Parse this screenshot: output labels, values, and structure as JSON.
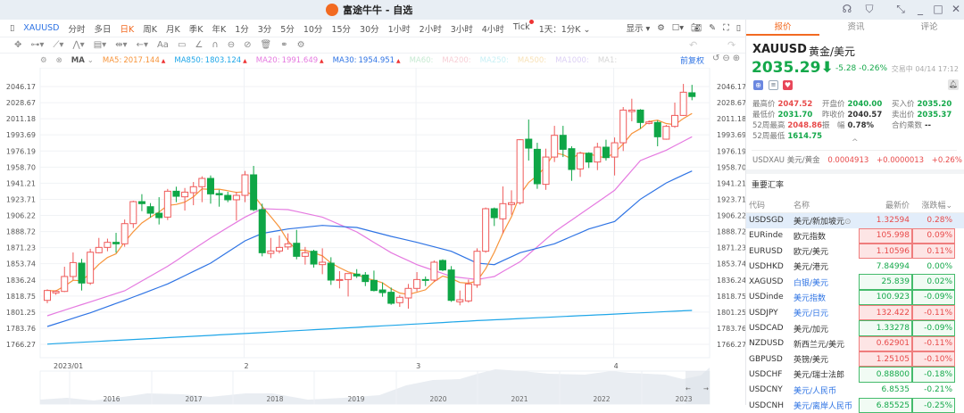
{
  "window": {
    "title": "富途牛牛 - 自选",
    "icons": [
      "headset-icon",
      "shirt-icon",
      "shrink-icon",
      "minimize-icon",
      "maximize-icon",
      "close-icon"
    ]
  },
  "toolbar": {
    "symbol": "XAUUSD",
    "periods": [
      "分时",
      "多日",
      "日K",
      "周K",
      "月K",
      "季K",
      "年K",
      "1分",
      "3分",
      "5分",
      "10分",
      "15分",
      "30分",
      "1小时",
      "2小时",
      "3小时",
      "4小时",
      "Tick",
      "1天：1分K"
    ],
    "active_period": "日K",
    "display_label": "显示"
  },
  "legend": {
    "indicator": "MA",
    "items": [
      {
        "label": "MA5:",
        "value": "2017.144",
        "color": "#f7943a"
      },
      {
        "label": "MA850:",
        "value": "1803.124",
        "color": "#1fa6e8"
      },
      {
        "label": "MA20:",
        "value": "1991.649",
        "color": "#e57ae0"
      },
      {
        "label": "MA30:",
        "value": "1954.951",
        "color": "#2f74e4"
      },
      {
        "label": "MA60:",
        "value": "",
        "color": "#c7ead2"
      },
      {
        "label": "MA200:",
        "value": "",
        "color": "#f7cfd6"
      },
      {
        "label": "MA250:",
        "value": "",
        "color": "#c8f0f5"
      },
      {
        "label": "MA500:",
        "value": "",
        "color": "#f8e2b8"
      },
      {
        "label": "MA1000:",
        "value": "",
        "color": "#dcd0f5"
      },
      {
        "label": "MA1:",
        "value": "",
        "color": "#d6d6d6"
      }
    ],
    "reset_label": "前复权"
  },
  "chart_data": {
    "type": "candlestick",
    "y_ticks": [
      "2046.17",
      "2028.67",
      "2011.18",
      "1993.69",
      "1976.19",
      "1958.70",
      "1941.21",
      "1923.71",
      "1906.22",
      "1888.72",
      "1871.23",
      "1853.74",
      "1836.24",
      "1818.75",
      "1801.25",
      "1783.76",
      "1766.27"
    ],
    "ylim": [
      1766.27,
      2046.17
    ],
    "x_ticks": [
      {
        "label": "2023/01",
        "index": 0
      },
      {
        "label": "2",
        "index": 23
      },
      {
        "label": "3",
        "index": 43
      },
      {
        "label": "4",
        "index": 66
      }
    ],
    "up_color": "#ef5a5a",
    "down_color": "#0fa646",
    "grid": true,
    "candles_ohlc": [
      [
        1814,
        1826,
        1811,
        1824.7
      ],
      [
        1822.1,
        1825,
        1820,
        1823.8
      ],
      [
        1823.7,
        1850.5,
        1823,
        1839.9
      ],
      [
        1839.9,
        1866,
        1836,
        1855
      ],
      [
        1854.4,
        1859,
        1824.7,
        1832.8
      ],
      [
        1832.8,
        1870,
        1830.8,
        1866.3
      ],
      [
        1865.7,
        1881.8,
        1865,
        1871.5
      ],
      [
        1871.5,
        1881,
        1867.3,
        1877
      ],
      [
        1877,
        1887.3,
        1865.7,
        1875.4
      ],
      [
        1875.4,
        1901.8,
        1872.2,
        1897.3
      ],
      [
        1897.3,
        1922.2,
        1892.5,
        1921.2
      ],
      [
        1921.2,
        1929.3,
        1910.9,
        1919
      ],
      [
        1915.7,
        1919.6,
        1903.8,
        1908.6
      ],
      [
        1908.6,
        1926,
        1896.4,
        1903.8
      ],
      [
        1904.4,
        1935,
        1901.2,
        1932.5
      ],
      [
        1932.5,
        1937.4,
        1920.6,
        1927
      ],
      [
        1926.4,
        1936,
        1911.5,
        1931.5
      ],
      [
        1930.9,
        1942.5,
        1917.3,
        1937.4
      ],
      [
        1937.4,
        1948.7,
        1920.6,
        1946.4
      ],
      [
        1946.4,
        1949.6,
        1919,
        1929.6
      ],
      [
        1930,
        1934,
        1915.7,
        1928.6
      ],
      [
        1928,
        1931.9,
        1920.6,
        1923.2
      ],
      [
        1923.2,
        1931.9,
        1900.6,
        1928
      ],
      [
        1928,
        1954.5,
        1920.6,
        1950.3
      ],
      [
        1950.3,
        1960,
        1910.9,
        1912.5
      ],
      [
        1912.5,
        1919,
        1861.8,
        1865.7
      ],
      [
        1865,
        1881.8,
        1859.9,
        1867.6
      ],
      [
        1867.6,
        1884.4,
        1865,
        1871.5
      ],
      [
        1872,
        1886.7,
        1869,
        1875.4
      ],
      [
        1876,
        1890.5,
        1858.6,
        1861.8
      ],
      [
        1861.8,
        1872,
        1852.8,
        1865.7
      ],
      [
        1867.3,
        1868.9,
        1849.6,
        1853.4
      ],
      [
        1852.8,
        1870.5,
        1842.4,
        1855.4
      ],
      [
        1854.4,
        1860.8,
        1830.8,
        1836
      ],
      [
        1835.7,
        1845.7,
        1827,
        1836.6
      ],
      [
        1836.6,
        1843.1,
        1818.2,
        1843.1
      ],
      [
        1842.5,
        1847.9,
        1838.3,
        1840.5
      ],
      [
        1841.5,
        1844.7,
        1829.5,
        1834.4
      ],
      [
        1835.7,
        1846.3,
        1823.7,
        1824.7
      ],
      [
        1825.3,
        1833.4,
        1817.9,
        1822.4
      ],
      [
        1822.8,
        1827.9,
        1809.2,
        1810.8
      ],
      [
        1811.5,
        1819.8,
        1806.9,
        1817.3
      ],
      [
        1816.6,
        1831.8,
        1805,
        1827
      ],
      [
        1827,
        1844.7,
        1823.7,
        1836.6
      ],
      [
        1836.6,
        1839.9,
        1829.5,
        1835.7
      ],
      [
        1836,
        1857.3,
        1834.1,
        1855.4
      ],
      [
        1857.3,
        1858.6,
        1845.7,
        1847
      ],
      [
        1847,
        1851.2,
        1812.4,
        1814
      ],
      [
        1812.4,
        1824.7,
        1808.6,
        1814.7
      ],
      [
        1813.4,
        1836.6,
        1811.5,
        1831.8
      ],
      [
        1830.8,
        1870.5,
        1827.6,
        1867.3
      ],
      [
        1867.3,
        1914.8,
        1865.7,
        1913.5
      ],
      [
        1913.5,
        1914.8,
        1894.7,
        1903.8
      ],
      [
        1902.5,
        1937.7,
        1886.7,
        1919
      ],
      [
        1918,
        1933.5,
        1907,
        1920
      ],
      [
        1920,
        1989,
        1918,
        1988.4
      ],
      [
        1989,
        2010.3,
        1965.8,
        1979.3
      ],
      [
        1978,
        1985.1,
        1935.1,
        1940.6
      ],
      [
        1940,
        1978.7,
        1934,
        1969.6
      ],
      [
        1969.6,
        2003.5,
        1964.2,
        1993.2
      ],
      [
        1993.2,
        2003.5,
        1969.6,
        1978
      ],
      [
        1978.7,
        1981.3,
        1943.8,
        1956.1
      ],
      [
        1956.7,
        1975.4,
        1948,
        1973.8
      ],
      [
        1973.8,
        1974.8,
        1957.7,
        1964.2
      ],
      [
        1964.2,
        1985.1,
        1955.4,
        1980.3
      ],
      [
        1980.3,
        1988.4,
        1965.8,
        1969
      ],
      [
        1969.6,
        1990.9,
        1949.6,
        1985.1
      ],
      [
        1985.1,
        2023.9,
        1976.1,
        2020.6
      ],
      [
        2019,
        2032.9,
        2008.4,
        2020.6
      ],
      [
        2020.6,
        2021.6,
        2000.6,
        2007.1
      ],
      [
        2006.1,
        2009.3,
        2005.1,
        2007.7
      ],
      [
        2007.1,
        2009.3,
        1981.3,
        1991.6
      ],
      [
        1989,
        2004.5,
        1988.4,
        2002.9
      ],
      [
        2002.9,
        2028.7,
        2001.3,
        2014.8
      ],
      [
        2014.8,
        2049,
        2014.2,
        2040
      ],
      [
        2039.4,
        2048,
        2031.3,
        2035.29
      ]
    ],
    "ma_series": [
      {
        "name": "MA20",
        "color": "#e57ae0",
        "points": [
          [
            0,
            1797.3
          ],
          [
            5,
            1812.4
          ],
          [
            9,
            1824.4
          ],
          [
            14,
            1851
          ],
          [
            19,
            1881.8
          ],
          [
            23,
            1904.4
          ],
          [
            25,
            1913.5
          ],
          [
            28,
            1912.5
          ],
          [
            32,
            1904.4
          ],
          [
            36,
            1888.3
          ],
          [
            40,
            1865.7
          ],
          [
            43,
            1852.8
          ],
          [
            47,
            1839.9
          ],
          [
            50,
            1836.6
          ],
          [
            52,
            1839.9
          ],
          [
            55,
            1856
          ],
          [
            59,
            1888.3
          ],
          [
            63,
            1914.1
          ],
          [
            66,
            1933.5
          ],
          [
            69,
            1965.8
          ],
          [
            72,
            1977
          ],
          [
            75,
            1991.6
          ]
        ]
      },
      {
        "name": "MA30",
        "color": "#2f74e4",
        "points": [
          [
            0,
            1785.6
          ],
          [
            5,
            1800.5
          ],
          [
            9,
            1814
          ],
          [
            14,
            1831.8
          ],
          [
            19,
            1854.4
          ],
          [
            23,
            1878.6
          ],
          [
            25,
            1886.7
          ],
          [
            28,
            1891.5
          ],
          [
            32,
            1895.4
          ],
          [
            36,
            1893.1
          ],
          [
            40,
            1883.5
          ],
          [
            43,
            1877
          ],
          [
            47,
            1867.3
          ],
          [
            50,
            1854.4
          ],
          [
            52,
            1852.8
          ],
          [
            55,
            1865.7
          ],
          [
            59,
            1875.4
          ],
          [
            63,
            1891.5
          ],
          [
            66,
            1899.6
          ],
          [
            69,
            1923.8
          ],
          [
            72,
            1941.5
          ],
          [
            75,
            1954.5
          ]
        ]
      },
      {
        "name": "MA850",
        "color": "#1fa6e8",
        "points": [
          [
            0,
            1766.5
          ],
          [
            25,
            1779
          ],
          [
            50,
            1792
          ],
          [
            75,
            1803.1
          ]
        ]
      }
    ],
    "ma5_color": "#f7943a",
    "navigator_years": [
      "2016",
      "2017",
      "2018",
      "2019",
      "2020",
      "2021",
      "2022",
      "2023"
    ]
  },
  "panel": {
    "tabs": [
      "报价",
      "资讯",
      "评论"
    ],
    "active_tab": "报价",
    "symbol": "XAUUSD",
    "name": "黄金/美元",
    "price": "2035.29",
    "change": "-5.28",
    "change_pct": "-0.26%",
    "status": "交易中 04/14 17:12",
    "stats": [
      {
        "label": "最高价",
        "value": "2047.52",
        "tone": "red"
      },
      {
        "label": "开盘价",
        "value": "2040.00",
        "tone": "green"
      },
      {
        "label": "买入价",
        "value": "2035.20",
        "tone": "green"
      },
      {
        "label": "最低价",
        "value": "2031.70",
        "tone": "green"
      },
      {
        "label": "昨收价",
        "value": "2040.57",
        "tone": "dark"
      },
      {
        "label": "卖出价",
        "value": "2035.37",
        "tone": "green"
      },
      {
        "label": "52周最高",
        "value": "2048.86",
        "tone": "red"
      },
      {
        "label": "振　幅",
        "value": "0.78%",
        "tone": "dark"
      },
      {
        "label": "合约乘数",
        "value": "--",
        "tone": "dark"
      },
      {
        "label": "52周最低",
        "value": "1614.75",
        "tone": "green"
      }
    ],
    "inverse": {
      "code": "USDXAU",
      "name": "美元/黄金",
      "price": "0.0004913",
      "change": "+0.0000013",
      "pct": "+0.26%"
    },
    "rates_title": "重要汇率",
    "columns": [
      "代码",
      "名称",
      "最新价",
      "涨跌幅"
    ],
    "rows": [
      {
        "code": "USDSGD",
        "name": "美元/新加坡元",
        "price": "1.32594",
        "pct": "0.28%",
        "tone": "red",
        "box": false,
        "link": false,
        "selected": true
      },
      {
        "code": "EURinde",
        "name": "欧元指数",
        "price": "105.998",
        "pct": "0.09%",
        "tone": "red",
        "box": true,
        "link": false
      },
      {
        "code": "EURUSD",
        "name": "欧元/美元",
        "price": "1.10596",
        "pct": "0.11%",
        "tone": "red",
        "box": true,
        "link": false
      },
      {
        "code": "USDHKD",
        "name": "美元/港元",
        "price": "7.84994",
        "pct": "0.00%",
        "tone": "green",
        "box": false,
        "link": false
      },
      {
        "code": "XAGUSD",
        "name": "白银/美元",
        "price": "25.839",
        "pct": "0.02%",
        "tone": "green",
        "box": true,
        "link": true
      },
      {
        "code": "USDinde",
        "name": "美元指数",
        "price": "100.923",
        "pct": "-0.09%",
        "tone": "green",
        "box": true,
        "link": true
      },
      {
        "code": "USDJPY",
        "name": "美元/日元",
        "price": "132.422",
        "pct": "-0.11%",
        "tone": "red",
        "box": true,
        "link": true
      },
      {
        "code": "USDCAD",
        "name": "美元/加元",
        "price": "1.33278",
        "pct": "-0.09%",
        "tone": "green",
        "box": true,
        "link": false
      },
      {
        "code": "NZDUSD",
        "name": "新西兰元/美元",
        "price": "0.62901",
        "pct": "-0.11%",
        "tone": "red",
        "box": true,
        "link": false
      },
      {
        "code": "GBPUSD",
        "name": "英镑/美元",
        "price": "1.25105",
        "pct": "-0.10%",
        "tone": "red",
        "box": true,
        "link": false
      },
      {
        "code": "USDCHF",
        "name": "美元/瑞士法郎",
        "price": "0.88800",
        "pct": "-0.18%",
        "tone": "green",
        "box": true,
        "link": false
      },
      {
        "code": "USDCNY",
        "name": "美元/人民币",
        "price": "6.8535",
        "pct": "-0.21%",
        "tone": "green",
        "box": false,
        "link": true
      },
      {
        "code": "USDCNH",
        "name": "美元/离岸人民币",
        "price": "6.85525",
        "pct": "-0.25%",
        "tone": "green",
        "box": true,
        "link": true
      }
    ]
  }
}
